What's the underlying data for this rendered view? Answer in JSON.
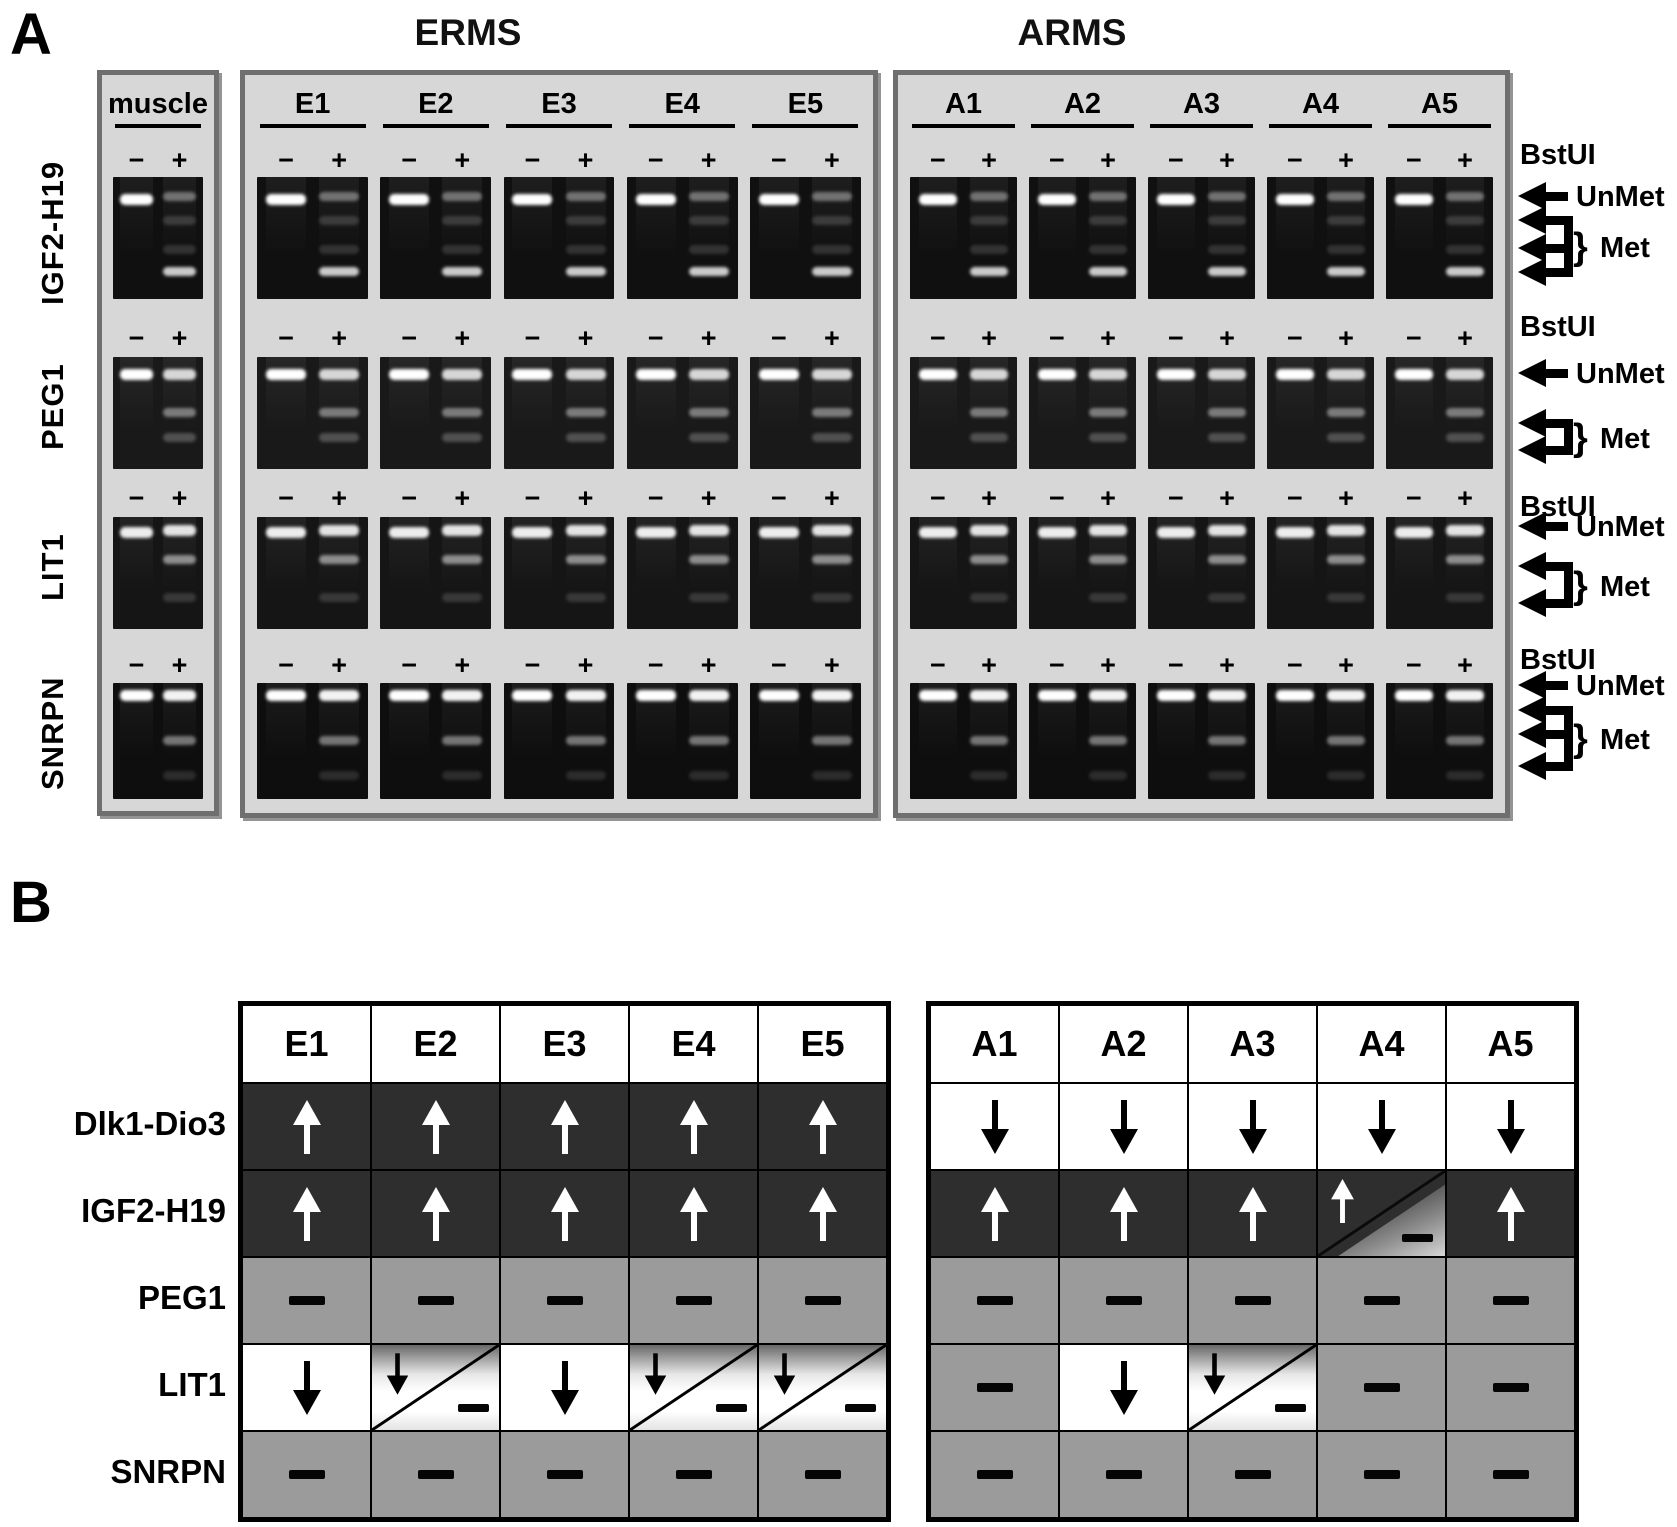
{
  "figure": {
    "panel_a": {
      "label": "A",
      "group_titles": [
        "ERMS",
        "ARMS"
      ],
      "muscle_label": "muscle",
      "erms_samples": [
        "E1",
        "E2",
        "E3",
        "E4",
        "E5"
      ],
      "arms_samples": [
        "A1",
        "A2",
        "A3",
        "A4",
        "A5"
      ],
      "genes": [
        "IGF2-H19",
        "PEG1",
        "LIT1",
        "SNRPN"
      ],
      "lane_labels": {
        "minus": "−",
        "plus": "+"
      },
      "enzyme_label": "BstUI",
      "unmet_label": "UnMet",
      "met_label": "Met",
      "met_arrow_counts": [
        3,
        2,
        2,
        3
      ],
      "gel_bands": {
        "IGF2-H19": {
          "bg": "#101010",
          "minus": [
            {
              "y": 0.18,
              "i": 1.0
            }
          ],
          "plus": [
            {
              "y": 0.16,
              "i": 0.38
            },
            {
              "y": 0.36,
              "i": 0.16
            },
            {
              "y": 0.6,
              "i": 0.14
            },
            {
              "y": 0.78,
              "i": 0.78
            }
          ]
        },
        "PEG1": {
          "bg": "#191919",
          "minus": [
            {
              "y": 0.15,
              "i": 1.0
            }
          ],
          "plus": [
            {
              "y": 0.15,
              "i": 0.82
            },
            {
              "y": 0.5,
              "i": 0.42
            },
            {
              "y": 0.72,
              "i": 0.24
            }
          ]
        },
        "LIT1": {
          "bg": "#151515",
          "minus": [
            {
              "y": 0.13,
              "i": 0.92
            }
          ],
          "plus": [
            {
              "y": 0.12,
              "i": 0.88
            },
            {
              "y": 0.38,
              "i": 0.5
            },
            {
              "y": 0.72,
              "i": 0.15
            }
          ]
        },
        "SNRPN": {
          "bg": "#0e0e0e",
          "minus": [
            {
              "y": 0.1,
              "i": 1.0
            }
          ],
          "plus": [
            {
              "y": 0.1,
              "i": 0.95
            },
            {
              "y": 0.5,
              "i": 0.42
            },
            {
              "y": 0.8,
              "i": 0.12
            }
          ]
        }
      }
    },
    "panel_b": {
      "label": "B",
      "row_labels": [
        "Dlk1-Dio3",
        "IGF2-H19",
        "PEG1",
        "LIT1",
        "SNRPN"
      ],
      "erms": {
        "headers": [
          "E1",
          "E2",
          "E3",
          "E4",
          "E5"
        ],
        "rows": [
          [
            "up",
            "up",
            "up",
            "up",
            "up"
          ],
          [
            "up",
            "up",
            "up",
            "up",
            "up"
          ],
          [
            "dash",
            "dash",
            "dash",
            "dash",
            "dash"
          ],
          [
            "down",
            "split_down",
            "down",
            "split_down",
            "split_down"
          ],
          [
            "dash",
            "dash",
            "dash",
            "dash",
            "dash"
          ]
        ]
      },
      "arms": {
        "headers": [
          "A1",
          "A2",
          "A3",
          "A4",
          "A5"
        ],
        "rows": [
          [
            "down",
            "down",
            "down",
            "down",
            "down"
          ],
          [
            "up",
            "up",
            "up",
            "split_up",
            "up"
          ],
          [
            "dash",
            "dash",
            "dash",
            "dash",
            "dash"
          ],
          [
            "dash",
            "down",
            "split_down",
            "dash",
            "dash"
          ],
          [
            "dash",
            "dash",
            "dash",
            "dash",
            "dash"
          ]
        ]
      }
    },
    "colors": {
      "panel_bg": "#d7d7d7",
      "panel_border": "#6f6f6f",
      "cell_dark": "#2e2e2e",
      "cell_gray": "#9b9b9b",
      "arrow_white": "#ffffff",
      "arrow_black": "#000000"
    }
  }
}
